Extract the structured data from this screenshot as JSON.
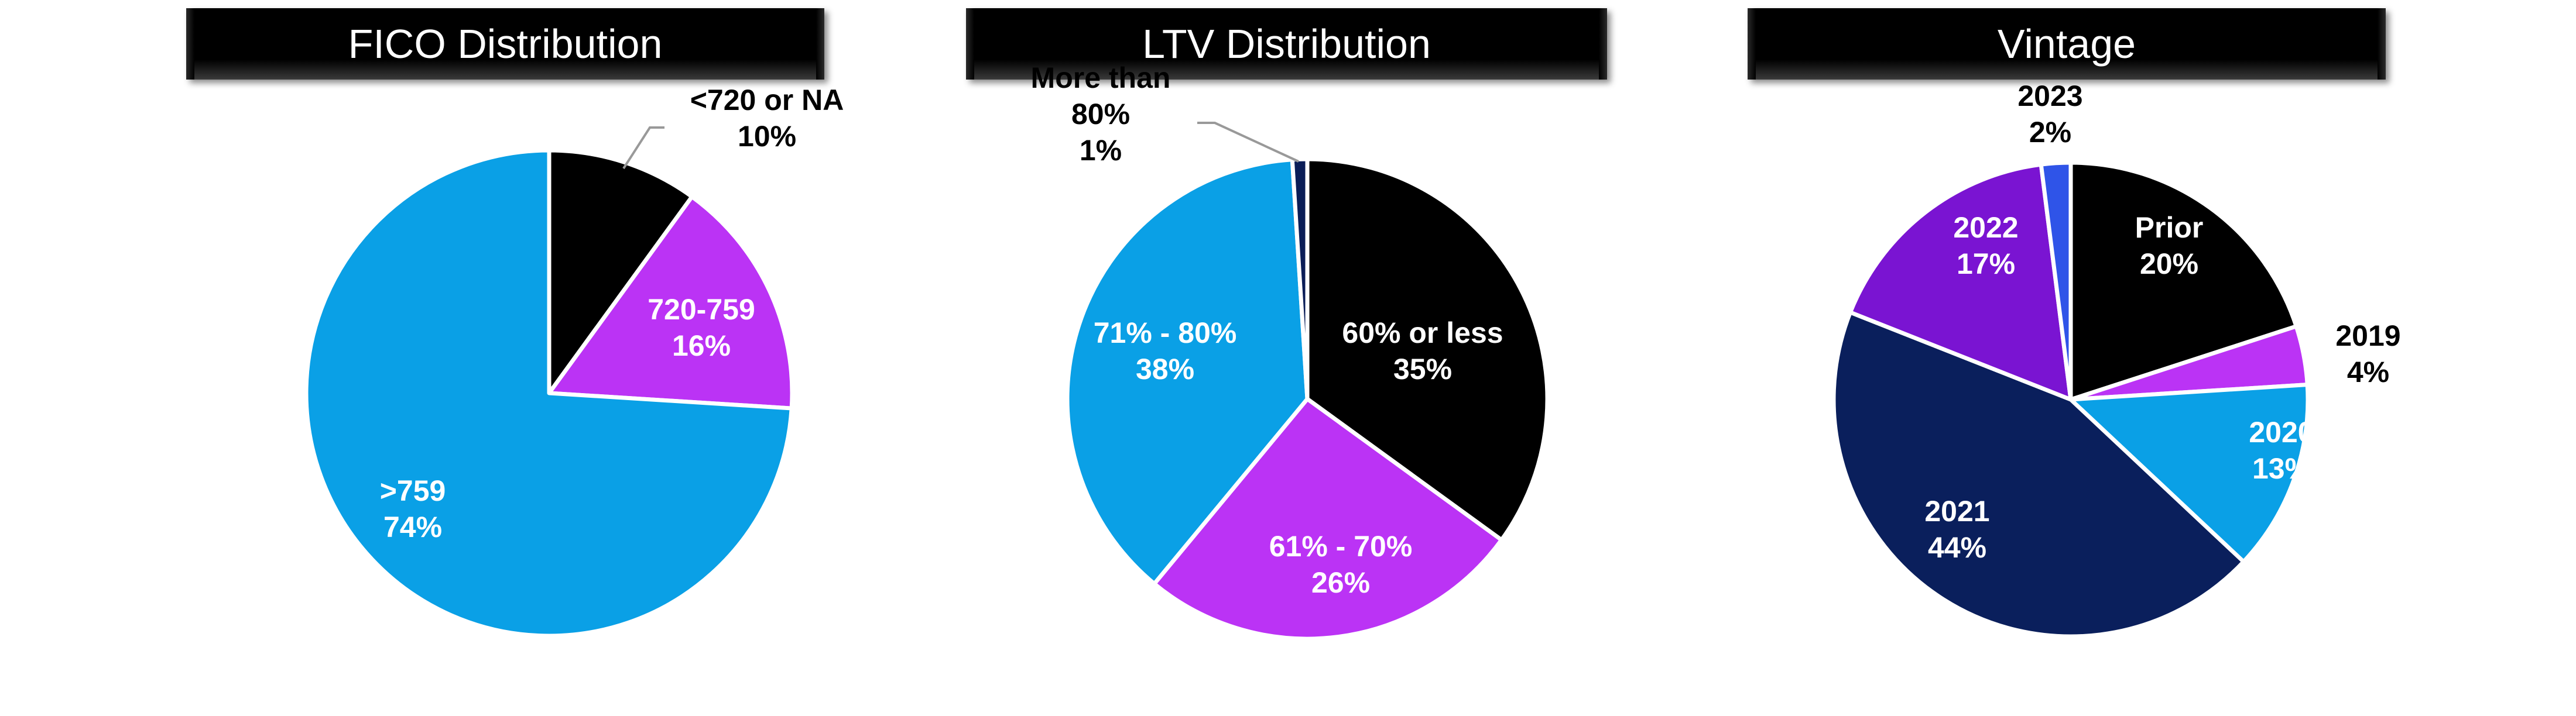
{
  "chart_data": [
    {
      "type": "pie",
      "title": "FICO Distribution",
      "slices": [
        {
          "name": "<720 or NA",
          "pct_label": "10%",
          "value": 10,
          "color": "#000000",
          "label_color": "#000000"
        },
        {
          "name": "720-759",
          "pct_label": "16%",
          "value": 16,
          "color": "#bb33f5",
          "label_color": "#ffffff"
        },
        {
          "name": ">759",
          "pct_label": "74%",
          "value": 74,
          "color": "#0aa0e6",
          "label_color": "#ffffff"
        }
      ]
    },
    {
      "type": "pie",
      "title": "LTV Distribution",
      "slices": [
        {
          "name": "60% or less",
          "pct_label": "35%",
          "value": 35,
          "color": "#000000",
          "label_color": "#ffffff"
        },
        {
          "name": "61% - 70%",
          "pct_label": "26%",
          "value": 26,
          "color": "#bb33f5",
          "label_color": "#ffffff"
        },
        {
          "name": "71% - 80%",
          "pct_label": "38%",
          "value": 38,
          "color": "#0aa0e6",
          "label_color": "#ffffff"
        },
        {
          "name": "More than 80%",
          "name_lines": [
            "More than",
            "80%"
          ],
          "pct_label": "1%",
          "value": 1,
          "color": "#0a1d57",
          "label_color": "#000000"
        }
      ]
    },
    {
      "type": "pie",
      "title": "Vintage",
      "slices": [
        {
          "name": "Prior",
          "pct_label": "20%",
          "value": 20,
          "color": "#000000",
          "label_color": "#ffffff"
        },
        {
          "name": "2019",
          "pct_label": "4%",
          "value": 4,
          "color": "#bb33f5",
          "label_color": "#000000"
        },
        {
          "name": "2020",
          "pct_label": "13%",
          "value": 13,
          "color": "#0aa0e6",
          "label_color": "#ffffff"
        },
        {
          "name": "2021",
          "pct_label": "44%",
          "value": 44,
          "color": "#0a1f5c",
          "label_color": "#ffffff"
        },
        {
          "name": "2022",
          "pct_label": "17%",
          "value": 17,
          "color": "#7a14d2",
          "label_color": "#ffffff"
        },
        {
          "name": "2023",
          "pct_label": "2%",
          "value": 2,
          "color": "#2f54e8",
          "label_color": "#000000"
        }
      ]
    }
  ]
}
